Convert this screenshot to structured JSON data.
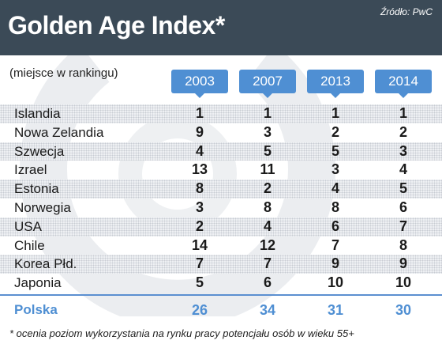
{
  "header": {
    "title": "Golden Age Index*",
    "source": "Źródło: PwC",
    "bg_color": "#3b4a57"
  },
  "subtitle": "(miejsce w rankingu)",
  "accent_color": "#4f8fd3",
  "chart_data": {
    "type": "table",
    "title": "Golden Age Index*",
    "subtitle": "(miejsce w rankingu)",
    "columns": [
      "2003",
      "2007",
      "2013",
      "2014"
    ],
    "rows": [
      {
        "country": "Islandia",
        "values": [
          1,
          1,
          1,
          1
        ]
      },
      {
        "country": "Nowa Zelandia",
        "values": [
          9,
          3,
          2,
          2
        ]
      },
      {
        "country": "Szwecja",
        "values": [
          4,
          5,
          5,
          3
        ]
      },
      {
        "country": "Izrael",
        "values": [
          13,
          11,
          3,
          4
        ]
      },
      {
        "country": "Estonia",
        "values": [
          8,
          2,
          4,
          5
        ]
      },
      {
        "country": "Norwegia",
        "values": [
          3,
          8,
          8,
          6
        ]
      },
      {
        "country": "USA",
        "values": [
          2,
          4,
          6,
          7
        ]
      },
      {
        "country": "Chile",
        "values": [
          14,
          12,
          7,
          8
        ]
      },
      {
        "country": "Korea Płd.",
        "values": [
          7,
          7,
          9,
          9
        ]
      },
      {
        "country": "Japonia",
        "values": [
          5,
          6,
          10,
          10
        ]
      }
    ],
    "highlight_row": {
      "country": "Polska",
      "values": [
        26,
        34,
        31,
        30
      ]
    },
    "footnote": "* ocenia poziom wykorzystania na rynku pracy potencjału osób w wieku 55+"
  }
}
